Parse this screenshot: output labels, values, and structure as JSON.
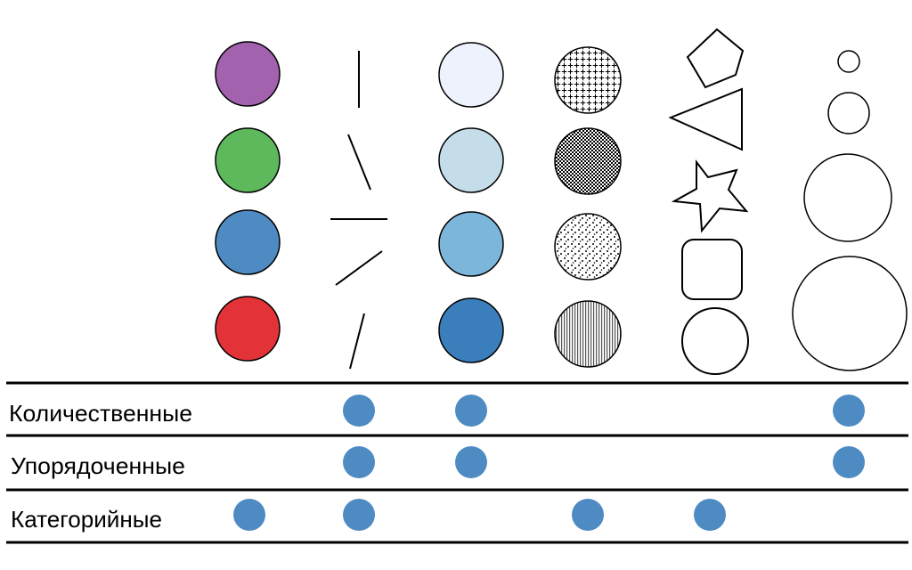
{
  "colors": {
    "hue": [
      "#a262ae",
      "#5db95b",
      "#4f8bc3",
      "#e33338"
    ],
    "lightness": [
      "#eef2fc",
      "#c5dce9",
      "#7db6db",
      "#3a7fbc"
    ],
    "dot": "#4f8bc3",
    "stroke": "#000000",
    "rule": "#000000"
  },
  "channels": [
    {
      "name": "цвет (тон)",
      "icon": "hue-circles"
    },
    {
      "name": "наклон",
      "icon": "tilted-lines"
    },
    {
      "name": "насыщенность",
      "icon": "lightness-circles"
    },
    {
      "name": "текстура",
      "icon": "texture-circles"
    },
    {
      "name": "форма",
      "icon": "shape-outlines"
    },
    {
      "name": "размер",
      "icon": "size-circles"
    }
  ],
  "rows": [
    {
      "label": "Количественные",
      "marks": [
        false,
        true,
        true,
        false,
        false,
        true
      ]
    },
    {
      "label": "Упорядоченные",
      "marks": [
        false,
        true,
        true,
        false,
        false,
        true
      ]
    },
    {
      "label": "Категорийные",
      "marks": [
        true,
        true,
        false,
        true,
        true,
        false
      ]
    }
  ]
}
